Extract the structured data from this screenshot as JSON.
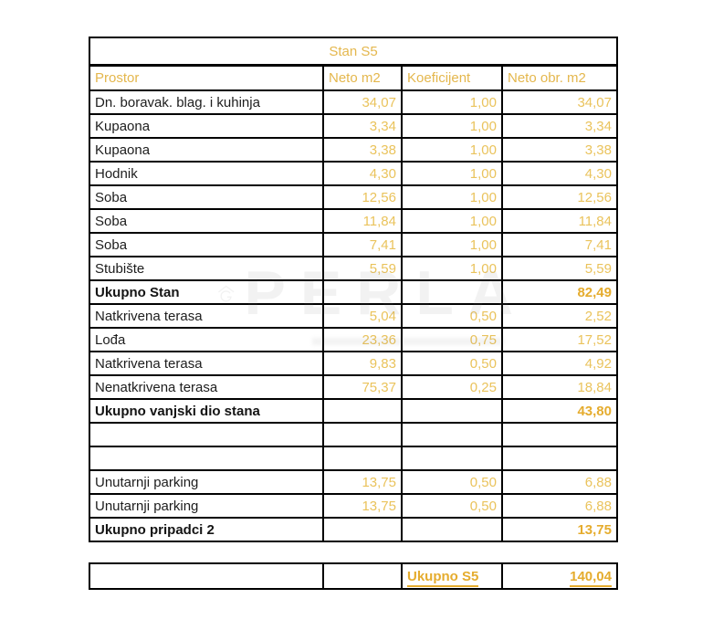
{
  "table": {
    "title": "Stan S5",
    "columns": [
      "Prostor",
      "Neto m2",
      "Koeficijent",
      "Neto obr. m2"
    ],
    "rows": [
      {
        "type": "normal",
        "label": "Dn. boravak. blag. i kuhinja",
        "neto": "34,07",
        "koef": "1,00",
        "obr": "34,07"
      },
      {
        "type": "normal",
        "label": "Kupaona",
        "neto": "3,34",
        "koef": "1,00",
        "obr": "3,34"
      },
      {
        "type": "normal",
        "label": "Kupaona",
        "neto": "3,38",
        "koef": "1,00",
        "obr": "3,38"
      },
      {
        "type": "normal",
        "label": "Hodnik",
        "neto": "4,30",
        "koef": "1,00",
        "obr": "4,30"
      },
      {
        "type": "normal",
        "label": "Soba",
        "neto": "12,56",
        "koef": "1,00",
        "obr": "12,56"
      },
      {
        "type": "normal",
        "label": "Soba",
        "neto": "11,84",
        "koef": "1,00",
        "obr": "11,84"
      },
      {
        "type": "normal",
        "label": "Soba",
        "neto": "7,41",
        "koef": "1,00",
        "obr": "7,41"
      },
      {
        "type": "normal",
        "label": "Stubište",
        "neto": "5,59",
        "koef": "1,00",
        "obr": "5,59"
      },
      {
        "type": "total",
        "label": "Ukupno Stan",
        "neto": "",
        "koef": "",
        "obr": "82,49"
      },
      {
        "type": "normal",
        "label": "Natkrivena terasa",
        "neto": "5,04",
        "koef": "0,50",
        "obr": "2,52"
      },
      {
        "type": "normal",
        "label": "Lođa",
        "neto": "23,36",
        "koef": "0,75",
        "obr": "17,52"
      },
      {
        "type": "normal",
        "label": "Natkrivena terasa",
        "neto": "9,83",
        "koef": "0,50",
        "obr": "4,92"
      },
      {
        "type": "normal",
        "label": "Nenatkrivena terasa",
        "neto": "75,37",
        "koef": "0,25",
        "obr": "18,84"
      },
      {
        "type": "total",
        "label": "Ukupno vanjski dio stana",
        "neto": "",
        "koef": "",
        "obr": "43,80"
      },
      {
        "type": "empty",
        "label": "",
        "neto": "",
        "koef": "",
        "obr": ""
      },
      {
        "type": "empty",
        "label": "",
        "neto": "",
        "koef": "",
        "obr": ""
      },
      {
        "type": "normal",
        "label": "Unutarnji parking",
        "neto": "13,75",
        "koef": "0,50",
        "obr": "6,88"
      },
      {
        "type": "normal",
        "label": "Unutarnji parking",
        "neto": "13,75",
        "koef": "0,50",
        "obr": "6,88"
      },
      {
        "type": "total",
        "label": "Ukupno pripadci 2",
        "neto": "",
        "koef": "",
        "obr": "13,75"
      }
    ],
    "footer": {
      "label": "Ukupno S5",
      "value": "140,04"
    }
  },
  "watermark": {
    "text": "PERLA"
  },
  "colors": {
    "header_gold": "#e4b74d",
    "value_gold": "#eac35c",
    "total_gold": "#e5ac2e",
    "text_black": "#1d1d1d",
    "border_black": "#000000"
  }
}
